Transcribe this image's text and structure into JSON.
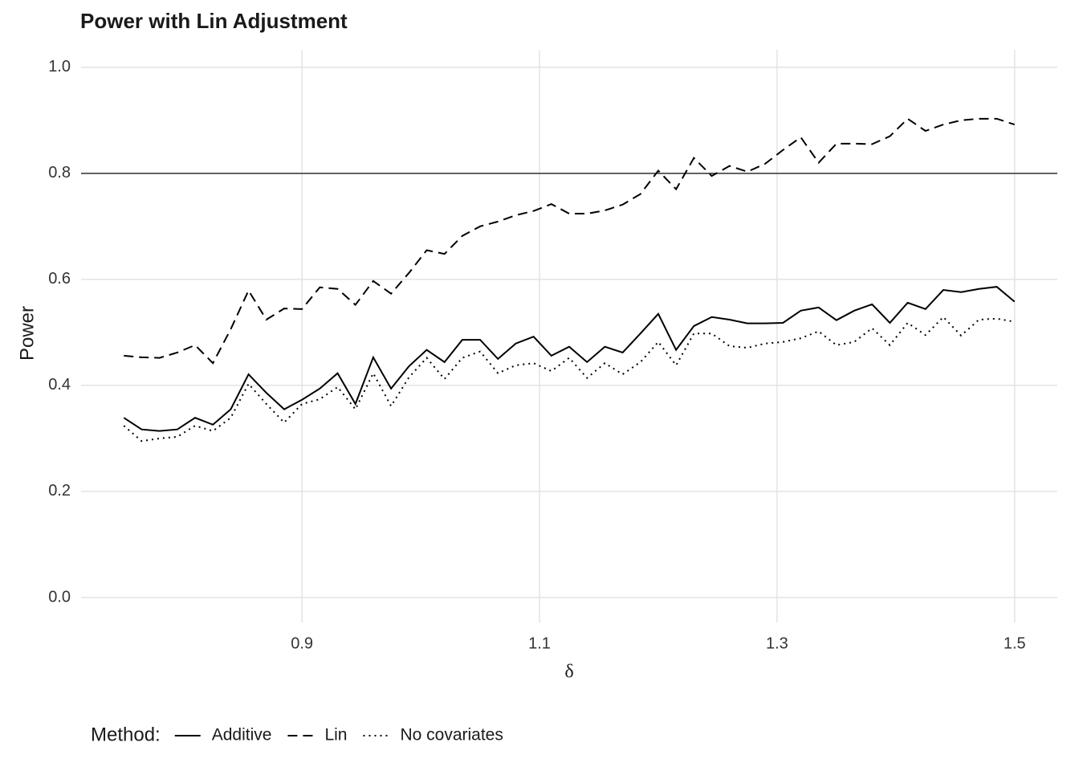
{
  "chart_data": {
    "type": "line",
    "title": "Power with Lin Adjustment",
    "x_label": "δ",
    "y_label": "Power",
    "legend_title": "Method:",
    "legend_position": "bottom",
    "grid": true,
    "hline": 0.8,
    "xlim": [
      0.714,
      1.536
    ],
    "ylim": [
      -0.047,
      1.033
    ],
    "xticks": [
      0.9,
      1.1,
      1.3,
      1.5
    ],
    "yticks": [
      {
        "value": 0,
        "label": "0.0"
      },
      0.2,
      0.4,
      0.6,
      0.8,
      {
        "value": 1,
        "label": "1.0"
      }
    ],
    "x": [
      0.75,
      0.765,
      0.78,
      0.795,
      0.81,
      0.825,
      0.84,
      0.855,
      0.87,
      0.885,
      0.9,
      0.915,
      0.93,
      0.945,
      0.96,
      0.975,
      0.99,
      1.005,
      1.02,
      1.035,
      1.05,
      1.065,
      1.08,
      1.095,
      1.11,
      1.125,
      1.14,
      1.155,
      1.17,
      1.185,
      1.2,
      1.215,
      1.23,
      1.245,
      1.26,
      1.275,
      1.29,
      1.305,
      1.32,
      1.335,
      1.35,
      1.365,
      1.38,
      1.395,
      1.41,
      1.425,
      1.44,
      1.455,
      1.47,
      1.485,
      1.5
    ],
    "series": [
      {
        "name": "Additive",
        "color": "#000000",
        "linestyle": "solid",
        "values": [
          0.339,
          0.317,
          0.314,
          0.317,
          0.339,
          0.326,
          0.355,
          0.421,
          0.386,
          0.355,
          0.373,
          0.394,
          0.423,
          0.365,
          0.453,
          0.394,
          0.436,
          0.467,
          0.444,
          0.486,
          0.486,
          0.45,
          0.479,
          0.492,
          0.456,
          0.473,
          0.444,
          0.473,
          0.462,
          0.498,
          0.535,
          0.467,
          0.512,
          0.529,
          0.524,
          0.517,
          0.517,
          0.518,
          0.541,
          0.547,
          0.523,
          0.541,
          0.553,
          0.518,
          0.556,
          0.544,
          0.58,
          0.576,
          0.582,
          0.586,
          0.558
        ]
      },
      {
        "name": "Lin",
        "color": "#000000",
        "linestyle": "dashed",
        "values": [
          0.456,
          0.453,
          0.452,
          0.462,
          0.476,
          0.442,
          0.506,
          0.579,
          0.524,
          0.545,
          0.544,
          0.585,
          0.582,
          0.552,
          0.597,
          0.573,
          0.612,
          0.655,
          0.648,
          0.682,
          0.7,
          0.709,
          0.721,
          0.729,
          0.742,
          0.724,
          0.724,
          0.73,
          0.741,
          0.761,
          0.805,
          0.77,
          0.829,
          0.795,
          0.814,
          0.803,
          0.818,
          0.844,
          0.868,
          0.82,
          0.856,
          0.856,
          0.855,
          0.87,
          0.903,
          0.88,
          0.892,
          0.9,
          0.903,
          0.903,
          0.892
        ]
      },
      {
        "name": "No covariates",
        "color": "#000000",
        "linestyle": "dotted",
        "values": [
          0.324,
          0.295,
          0.3,
          0.303,
          0.324,
          0.314,
          0.339,
          0.403,
          0.365,
          0.33,
          0.365,
          0.374,
          0.397,
          0.355,
          0.423,
          0.361,
          0.415,
          0.452,
          0.412,
          0.452,
          0.464,
          0.423,
          0.438,
          0.442,
          0.427,
          0.452,
          0.414,
          0.442,
          0.421,
          0.444,
          0.482,
          0.438,
          0.498,
          0.498,
          0.474,
          0.471,
          0.479,
          0.482,
          0.489,
          0.502,
          0.476,
          0.482,
          0.508,
          0.476,
          0.518,
          0.495,
          0.529,
          0.494,
          0.524,
          0.526,
          0.52
        ]
      }
    ]
  }
}
